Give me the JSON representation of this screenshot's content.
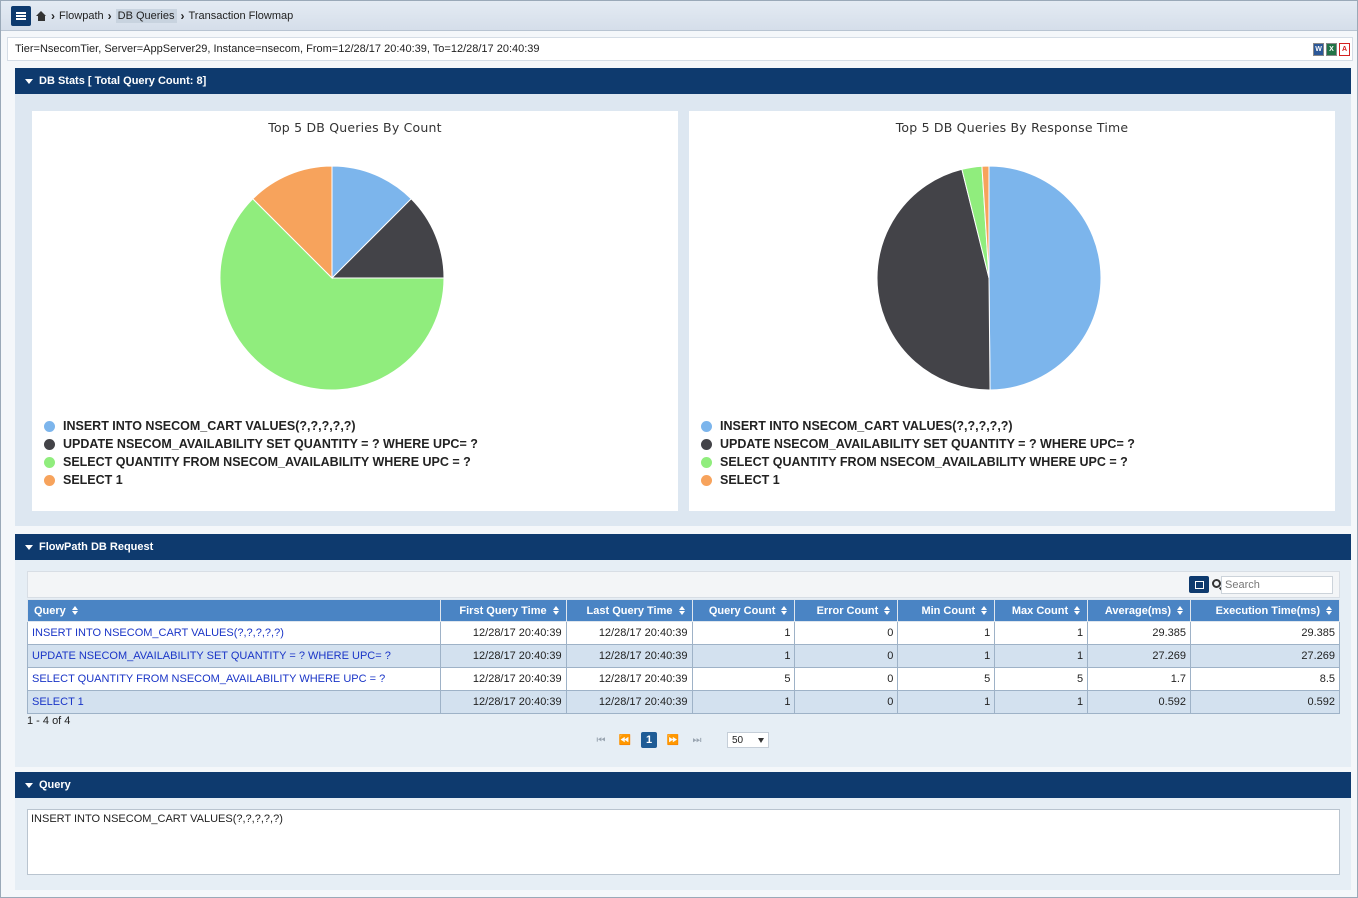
{
  "breadcrumb": {
    "items": [
      "Flowpath",
      "DB Queries",
      "Transaction Flowmap"
    ]
  },
  "info": {
    "text": "Tier=NsecomTier, Server=AppServer29, Instance=nsecom, From=12/28/17 20:40:39, To=12/28/17 20:40:39"
  },
  "export": {
    "word": "W",
    "excel": "X",
    "pdf": "A"
  },
  "sections": {
    "db_stats": "DB Stats [ Total Query Count: 8]",
    "flowpath": "FlowPath DB Request",
    "query": "Query"
  },
  "colors": {
    "blue": "#7cb5ec",
    "dark": "#434348",
    "green": "#90ed7d",
    "orange": "#f7a35c",
    "header": "#0e3a6e"
  },
  "legend": [
    "INSERT INTO NSECOM_CART VALUES(?,?,?,?,?)",
    "UPDATE NSECOM_AVAILABILITY SET QUANTITY = ? WHERE UPC= ?",
    "SELECT QUANTITY FROM NSECOM_AVAILABILITY WHERE UPC = ?",
    "SELECT 1"
  ],
  "chart_data": [
    {
      "type": "pie",
      "title": "Top 5 DB Queries By Count",
      "categories": [
        "INSERT INTO NSECOM_CART VALUES(?,?,?,?,?)",
        "UPDATE NSECOM_AVAILABILITY SET QUANTITY = ? WHERE UPC= ?",
        "SELECT QUANTITY FROM NSECOM_AVAILABILITY WHERE UPC = ?",
        "SELECT 1"
      ],
      "values": [
        1,
        1,
        5,
        1
      ],
      "colors": [
        "#7cb5ec",
        "#434348",
        "#90ed7d",
        "#f7a35c"
      ],
      "legend": "bottom-left"
    },
    {
      "type": "pie",
      "title": "Top 5 DB Queries By Response Time",
      "categories": [
        "INSERT INTO NSECOM_CART VALUES(?,?,?,?,?)",
        "UPDATE NSECOM_AVAILABILITY SET QUANTITY = ? WHERE UPC= ?",
        "SELECT QUANTITY FROM NSECOM_AVAILABILITY WHERE UPC = ?",
        "SELECT 1"
      ],
      "values": [
        29.385,
        27.269,
        1.7,
        0.592
      ],
      "colors": [
        "#7cb5ec",
        "#434348",
        "#90ed7d",
        "#f7a35c"
      ],
      "legend": "bottom-left"
    }
  ],
  "table": {
    "search_placeholder": "Search",
    "columns": [
      "Query",
      "First Query Time",
      "Last Query Time",
      "Query Count",
      "Error Count",
      "Min Count",
      "Max Count",
      "Average(ms)",
      "Execution Time(ms)"
    ],
    "rows": [
      [
        "INSERT INTO NSECOM_CART VALUES(?,?,?,?,?)",
        "12/28/17 20:40:39",
        "12/28/17 20:40:39",
        "1",
        "0",
        "1",
        "1",
        "29.385",
        "29.385"
      ],
      [
        "UPDATE NSECOM_AVAILABILITY SET QUANTITY = ? WHERE UPC= ?",
        "12/28/17 20:40:39",
        "12/28/17 20:40:39",
        "1",
        "0",
        "1",
        "1",
        "27.269",
        "27.269"
      ],
      [
        "SELECT QUANTITY FROM NSECOM_AVAILABILITY WHERE UPC = ?",
        "12/28/17 20:40:39",
        "12/28/17 20:40:39",
        "5",
        "0",
        "5",
        "5",
        "1.7",
        "8.5"
      ],
      [
        "SELECT 1",
        "12/28/17 20:40:39",
        "12/28/17 20:40:39",
        "1",
        "0",
        "1",
        "1",
        "0.592",
        "0.592"
      ]
    ],
    "rows_info": "1 - 4 of 4",
    "current_page": "1",
    "rows_per_page": "50"
  },
  "query_text": "INSERT INTO NSECOM_CART VALUES(?,?,?,?,?)"
}
